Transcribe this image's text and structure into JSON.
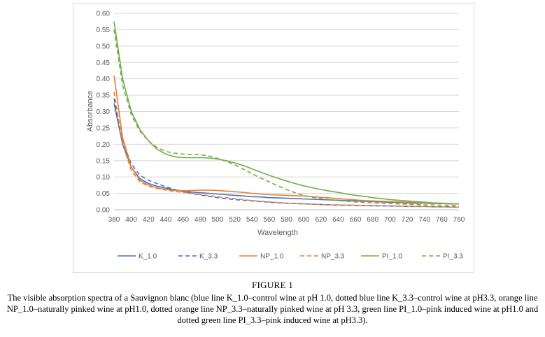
{
  "chart_data": {
    "type": "line",
    "xlabel": "Wavelength",
    "ylabel": "Absorbance",
    "xlim": [
      380,
      780
    ],
    "ylim": [
      0,
      0.6
    ],
    "x_ticks": [
      380,
      400,
      420,
      440,
      460,
      480,
      500,
      520,
      540,
      560,
      580,
      600,
      620,
      640,
      660,
      680,
      700,
      720,
      740,
      760,
      780
    ],
    "y_ticks": [
      "0.00",
      "0.05",
      "0.10",
      "0.15",
      "0.20",
      "0.25",
      "0.30",
      "0.35",
      "0.40",
      "0.45",
      "0.50",
      "0.55",
      "0.60"
    ],
    "grid": "horizontal",
    "legend": "bottom",
    "x": [
      380,
      390,
      400,
      410,
      420,
      430,
      440,
      450,
      460,
      470,
      480,
      490,
      500,
      510,
      520,
      530,
      540,
      550,
      560,
      570,
      580,
      590,
      600,
      610,
      620,
      630,
      640,
      650,
      660,
      670,
      680,
      690,
      700,
      710,
      720,
      730,
      740,
      750,
      760,
      770,
      780
    ],
    "series": [
      {
        "name": "K_1.0",
        "color": "#4472c4",
        "dash": "solid",
        "values": [
          0.325,
          0.2,
          0.13,
          0.095,
          0.08,
          0.072,
          0.066,
          0.061,
          0.057,
          0.054,
          0.052,
          0.05,
          0.048,
          0.046,
          0.044,
          0.042,
          0.04,
          0.039,
          0.037,
          0.036,
          0.035,
          0.034,
          0.033,
          0.032,
          0.031,
          0.03,
          0.029,
          0.028,
          0.027,
          0.026,
          0.025,
          0.024,
          0.023,
          0.022,
          0.021,
          0.02,
          0.02,
          0.019,
          0.019,
          0.018,
          0.018
        ]
      },
      {
        "name": "K_3.3",
        "color": "#4472c4",
        "dash": "dashed",
        "values": [
          0.34,
          0.21,
          0.14,
          0.105,
          0.09,
          0.08,
          0.07,
          0.062,
          0.055,
          0.05,
          0.045,
          0.041,
          0.037,
          0.034,
          0.031,
          0.029,
          0.027,
          0.025,
          0.023,
          0.021,
          0.02,
          0.019,
          0.018,
          0.017,
          0.016,
          0.015,
          0.014,
          0.014,
          0.013,
          0.013,
          0.012,
          0.012,
          0.011,
          0.011,
          0.01,
          0.01,
          0.01,
          0.009,
          0.009,
          0.009,
          0.008
        ]
      },
      {
        "name": "NP_1.0",
        "color": "#ed7d31",
        "dash": "solid",
        "values": [
          0.41,
          0.22,
          0.13,
          0.09,
          0.075,
          0.067,
          0.062,
          0.059,
          0.058,
          0.059,
          0.06,
          0.06,
          0.059,
          0.057,
          0.055,
          0.053,
          0.05,
          0.048,
          0.046,
          0.045,
          0.044,
          0.043,
          0.042,
          0.04,
          0.038,
          0.036,
          0.034,
          0.032,
          0.03,
          0.028,
          0.027,
          0.026,
          0.025,
          0.024,
          0.023,
          0.022,
          0.021,
          0.02,
          0.019,
          0.018,
          0.018
        ]
      },
      {
        "name": "NP_3.3",
        "color": "#ed7d31",
        "dash": "dashed",
        "values": [
          0.36,
          0.2,
          0.12,
          0.085,
          0.072,
          0.065,
          0.06,
          0.056,
          0.053,
          0.05,
          0.047,
          0.043,
          0.04,
          0.037,
          0.034,
          0.031,
          0.028,
          0.026,
          0.024,
          0.022,
          0.02,
          0.019,
          0.018,
          0.017,
          0.016,
          0.015,
          0.015,
          0.014,
          0.014,
          0.013,
          0.013,
          0.012,
          0.012,
          0.011,
          0.011,
          0.01,
          0.01,
          0.009,
          0.009,
          0.008,
          0.008
        ]
      },
      {
        "name": "PI_1.0",
        "color": "#70ad47",
        "dash": "solid",
        "values": [
          0.575,
          0.4,
          0.3,
          0.245,
          0.21,
          0.185,
          0.17,
          0.162,
          0.159,
          0.159,
          0.159,
          0.158,
          0.155,
          0.15,
          0.143,
          0.135,
          0.125,
          0.115,
          0.105,
          0.096,
          0.088,
          0.08,
          0.073,
          0.067,
          0.062,
          0.057,
          0.053,
          0.048,
          0.044,
          0.041,
          0.037,
          0.034,
          0.031,
          0.029,
          0.027,
          0.025,
          0.023,
          0.021,
          0.02,
          0.019,
          0.018
        ]
      },
      {
        "name": "PI_3.3",
        "color": "#70ad47",
        "dash": "dashed",
        "values": [
          0.55,
          0.38,
          0.29,
          0.24,
          0.21,
          0.19,
          0.178,
          0.173,
          0.17,
          0.169,
          0.168,
          0.164,
          0.157,
          0.148,
          0.137,
          0.124,
          0.11,
          0.097,
          0.085,
          0.073,
          0.062,
          0.052,
          0.044,
          0.038,
          0.034,
          0.031,
          0.028,
          0.026,
          0.024,
          0.022,
          0.021,
          0.02,
          0.019,
          0.018,
          0.017,
          0.016,
          0.015,
          0.015,
          0.014,
          0.013,
          0.012
        ]
      }
    ]
  },
  "caption": {
    "title": "FIGURE 1",
    "text": "The visible absorption spectra of a Sauvignon blanc (blue line K_1.0–control wine at pH 1.0, dotted blue line K_3.3–control wine at pH3.3, orange line NP_1.0–naturally pinked wine at pH1.0, dotted orange line NP_3.3–naturally pinked wine at pH 3.3, green line PI_1.0–pink induced wine at pH1.0 and dotted green line PI_3.3–pink induced wine at pH3.3)."
  }
}
